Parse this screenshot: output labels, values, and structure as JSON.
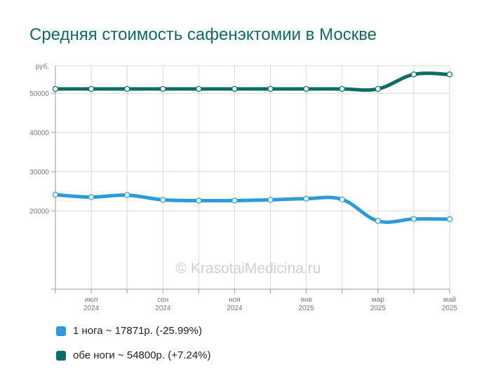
{
  "chart_data": {
    "type": "line",
    "title": "Средняя стоимость сафенэктомии в Москве",
    "y_unit": "руб.",
    "ylim": [
      0,
      57000
    ],
    "y_ticks": [
      20000,
      30000,
      40000,
      50000
    ],
    "x_tick_labels": [
      {
        "month": "июл",
        "year": "2024"
      },
      {
        "month": "сен",
        "year": "2024"
      },
      {
        "month": "ноя",
        "year": "2024"
      },
      {
        "month": "янв",
        "year": "2025"
      },
      {
        "month": "мар",
        "year": "2025"
      },
      {
        "month": "май",
        "year": "2025"
      }
    ],
    "x": [
      "2024-06",
      "2024-07",
      "2024-08",
      "2024-09",
      "2024-10",
      "2024-11",
      "2024-12",
      "2025-01",
      "2025-02",
      "2025-03",
      "2025-04",
      "2025-05"
    ],
    "grid": true,
    "legend_position": "bottom",
    "watermark": "© KrasotaiMedicina.ru",
    "series": [
      {
        "name": "1 нога",
        "legend_text": "1 нога ~ 17871р. (-25.99%)",
        "color": "#2b9bdc",
        "values": [
          24100,
          23500,
          24000,
          22800,
          22600,
          22600,
          22800,
          23100,
          22900,
          17400,
          17900,
          17871
        ]
      },
      {
        "name": "обе ноги",
        "legend_text": "обе ноги ~ 54800р. (+7.24%)",
        "color": "#0b6e66",
        "values": [
          51100,
          51100,
          51100,
          51100,
          51100,
          51100,
          51100,
          51100,
          51100,
          51100,
          54800,
          54800
        ]
      }
    ]
  }
}
